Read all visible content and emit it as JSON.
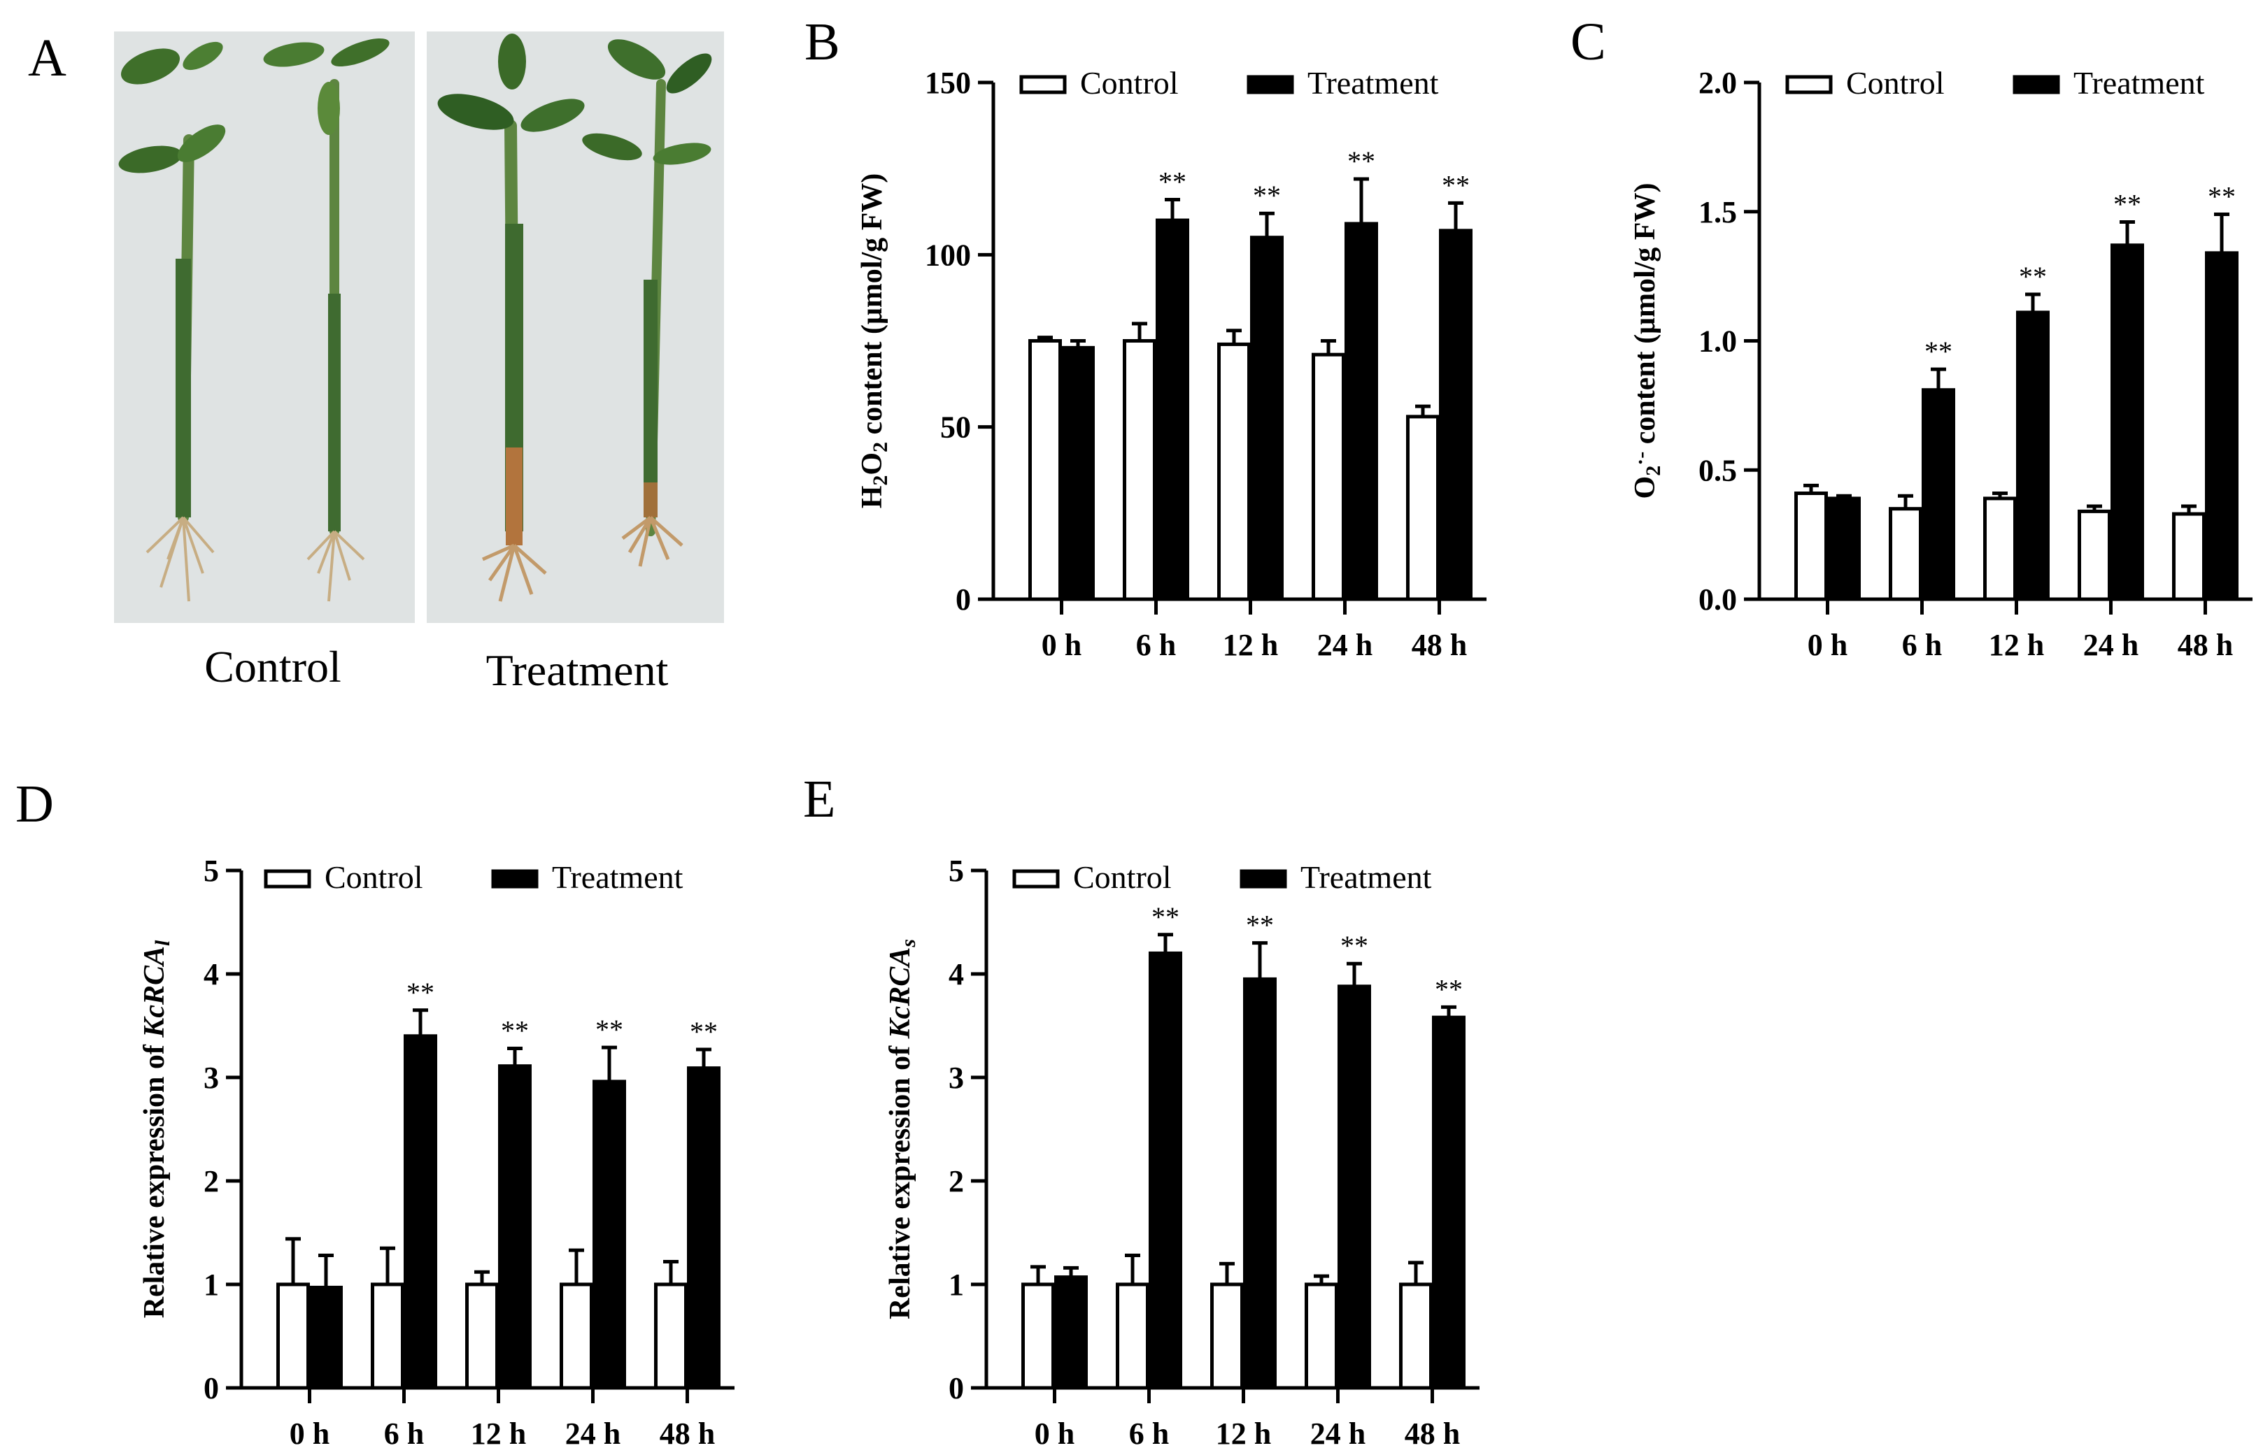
{
  "figure": {
    "panel_A": {
      "letter": "A",
      "photo_labels": [
        "Control",
        "Treatment"
      ]
    }
  },
  "colors": {
    "control_fill": "#ffffff",
    "treatment_fill": "#000000",
    "axis": "#000000"
  },
  "chart_data": [
    {
      "id": "B",
      "letter": "B",
      "type": "bar",
      "title": "",
      "categories": [
        "0 h",
        "6 h",
        "12 h",
        "24 h",
        "48 h"
      ],
      "ylabel_parts": [
        {
          "t": "H",
          "s": "normal"
        },
        {
          "t": "2",
          "s": "sub"
        },
        {
          "t": "O",
          "s": "normal"
        },
        {
          "t": "2",
          "s": "sub"
        },
        {
          "t": " content (μmol/g FW)",
          "s": "normal"
        }
      ],
      "ylim": [
        0,
        150
      ],
      "yticks": [
        0,
        50,
        100,
        150
      ],
      "tick_labels": [
        "0",
        "50",
        "100",
        "150"
      ],
      "series": [
        {
          "name": "Control",
          "values": [
            75,
            75,
            74,
            71,
            53
          ],
          "errors": [
            1,
            5,
            4,
            4,
            3
          ],
          "sig": [
            "",
            "",
            "",
            "",
            ""
          ]
        },
        {
          "name": "Treatment",
          "values": [
            73,
            110,
            105,
            109,
            107
          ],
          "errors": [
            2,
            6,
            7,
            13,
            8
          ],
          "sig": [
            "",
            "**",
            "**",
            "**",
            "**"
          ]
        }
      ]
    },
    {
      "id": "C",
      "letter": "C",
      "type": "bar",
      "title": "",
      "categories": [
        "0 h",
        "6 h",
        "12 h",
        "24 h",
        "48 h"
      ],
      "ylabel_parts": [
        {
          "t": "O",
          "s": "normal"
        },
        {
          "t": "2",
          "s": "sub"
        },
        {
          "t": "·-",
          "s": "sup"
        },
        {
          "t": " content (μmol/g FW)",
          "s": "normal"
        }
      ],
      "ylim": [
        0,
        2.0
      ],
      "yticks": [
        0,
        0.5,
        1.0,
        1.5,
        2.0
      ],
      "tick_labels": [
        "0.0",
        "0.5",
        "1.0",
        "1.5",
        "2.0"
      ],
      "series": [
        {
          "name": "Control",
          "values": [
            0.41,
            0.35,
            0.39,
            0.34,
            0.33
          ],
          "errors": [
            0.03,
            0.05,
            0.02,
            0.02,
            0.03
          ],
          "sig": [
            "",
            "",
            "",
            "",
            ""
          ]
        },
        {
          "name": "Treatment",
          "values": [
            0.39,
            0.81,
            1.11,
            1.37,
            1.34
          ],
          "errors": [
            0.01,
            0.08,
            0.07,
            0.09,
            0.15
          ],
          "sig": [
            "",
            "**",
            "**",
            "**",
            "**"
          ]
        }
      ]
    },
    {
      "id": "D",
      "letter": "D",
      "type": "bar",
      "title": "",
      "categories": [
        "0 h",
        "6 h",
        "12 h",
        "24 h",
        "48 h"
      ],
      "ylabel_parts": [
        {
          "t": "Relative expression of ",
          "s": "normal"
        },
        {
          "t": "KcRCA",
          "s": "italic"
        },
        {
          "t": "l",
          "s": "subitalic"
        }
      ],
      "ylim": [
        0,
        5
      ],
      "yticks": [
        0,
        1,
        2,
        3,
        4,
        5
      ],
      "tick_labels": [
        "0",
        "1",
        "2",
        "3",
        "4",
        "5"
      ],
      "series": [
        {
          "name": "Control",
          "values": [
            1.0,
            1.0,
            1.0,
            1.0,
            1.0
          ],
          "errors": [
            0.44,
            0.35,
            0.12,
            0.33,
            0.22
          ],
          "sig": [
            "",
            "",
            "",
            "",
            ""
          ]
        },
        {
          "name": "Treatment",
          "values": [
            0.97,
            3.4,
            3.11,
            2.96,
            3.09
          ],
          "errors": [
            0.31,
            0.25,
            0.17,
            0.33,
            0.18
          ],
          "sig": [
            "",
            "**",
            "**",
            "**",
            "**"
          ]
        }
      ]
    },
    {
      "id": "E",
      "letter": "E",
      "type": "bar",
      "title": "",
      "categories": [
        "0 h",
        "6 h",
        "12 h",
        "24 h",
        "48 h"
      ],
      "ylabel_parts": [
        {
          "t": "Relative expression of ",
          "s": "normal"
        },
        {
          "t": "KcRCA",
          "s": "italic"
        },
        {
          "t": "s",
          "s": "subitalic"
        }
      ],
      "ylim": [
        0,
        5
      ],
      "yticks": [
        0,
        1,
        2,
        3,
        4,
        5
      ],
      "tick_labels": [
        "0",
        "1",
        "2",
        "3",
        "4",
        "5"
      ],
      "series": [
        {
          "name": "Control",
          "values": [
            1.0,
            1.0,
            1.0,
            1.0,
            1.0
          ],
          "errors": [
            0.17,
            0.28,
            0.2,
            0.08,
            0.21
          ],
          "sig": [
            "",
            "",
            "",
            "",
            ""
          ]
        },
        {
          "name": "Treatment",
          "values": [
            1.07,
            4.2,
            3.95,
            3.88,
            3.58
          ],
          "errors": [
            0.09,
            0.18,
            0.35,
            0.22,
            0.1
          ],
          "sig": [
            "",
            "**",
            "**",
            "**",
            "**"
          ]
        }
      ]
    }
  ]
}
